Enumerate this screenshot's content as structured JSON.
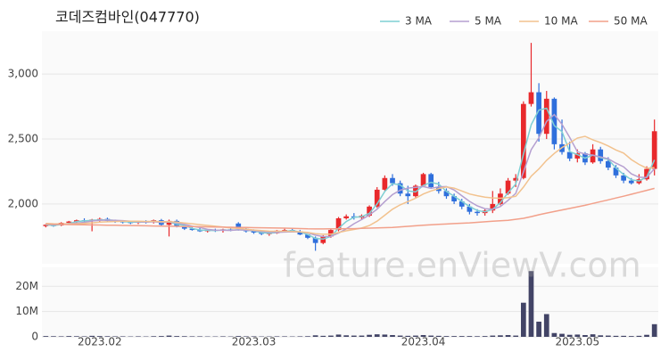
{
  "watermark": "feature.enViewV.com",
  "chart_data": [
    {
      "type": "candlestick",
      "title": "코데즈컴바인(047770)",
      "up_color": "#e8292c",
      "down_color": "#2f6fdc",
      "open": [
        1830,
        1840,
        1835,
        1855,
        1865,
        1875,
        1870,
        1880,
        1885,
        1870,
        1865,
        1860,
        1855,
        1865,
        1860,
        1875,
        1840,
        1870,
        1825,
        1810,
        1800,
        1790,
        1800,
        1795,
        1805,
        1850,
        1810,
        1790,
        1780,
        1770,
        1775,
        1795,
        1800,
        1790,
        1765,
        1740,
        1700,
        1750,
        1800,
        1890,
        1905,
        1895,
        1910,
        1980,
        2110,
        2200,
        2160,
        2080,
        2060,
        2140,
        2230,
        2130,
        2100,
        2060,
        2020,
        1980,
        1940,
        1930,
        1950,
        2000,
        2080,
        2180,
        2200,
        2770,
        2860,
        2540,
        2810,
        2460,
        2400,
        2350,
        2390,
        2320,
        2420,
        2330,
        2280,
        2220,
        2180,
        2160,
        2190,
        2270
      ],
      "high": [
        1845,
        1850,
        1860,
        1870,
        1880,
        1890,
        1885,
        1895,
        1895,
        1880,
        1875,
        1870,
        1870,
        1875,
        1880,
        1885,
        1880,
        1880,
        1835,
        1820,
        1815,
        1805,
        1810,
        1810,
        1815,
        1860,
        1820,
        1805,
        1790,
        1785,
        1800,
        1810,
        1810,
        1800,
        1770,
        1750,
        1760,
        1810,
        1900,
        1920,
        1930,
        1920,
        1990,
        2130,
        2220,
        2230,
        2180,
        2140,
        2150,
        2240,
        2240,
        2170,
        2120,
        2080,
        2040,
        2000,
        1960,
        1960,
        2100,
        2120,
        2200,
        2230,
        2790,
        3240,
        2930,
        2870,
        2820,
        2650,
        2480,
        2420,
        2400,
        2460,
        2440,
        2360,
        2300,
        2240,
        2200,
        2230,
        2290,
        2650
      ],
      "low": [
        1820,
        1825,
        1830,
        1845,
        1855,
        1860,
        1790,
        1865,
        1860,
        1855,
        1850,
        1845,
        1845,
        1850,
        1850,
        1830,
        1750,
        1820,
        1800,
        1795,
        1785,
        1780,
        1785,
        1780,
        1790,
        1795,
        1780,
        1770,
        1760,
        1755,
        1770,
        1785,
        1780,
        1760,
        1730,
        1640,
        1690,
        1740,
        1790,
        1880,
        1880,
        1880,
        1900,
        1970,
        2100,
        2140,
        2060,
        2000,
        2050,
        2130,
        2120,
        2080,
        2040,
        2000,
        1960,
        1920,
        1910,
        1910,
        1930,
        1990,
        2070,
        2130,
        2190,
        2750,
        2480,
        2500,
        2420,
        2380,
        2330,
        2320,
        2300,
        2310,
        2310,
        2260,
        2200,
        2160,
        2150,
        2150,
        2180,
        2220
      ],
      "close": [
        1840,
        1830,
        1855,
        1865,
        1875,
        1870,
        1880,
        1885,
        1870,
        1865,
        1860,
        1855,
        1865,
        1860,
        1875,
        1840,
        1870,
        1825,
        1810,
        1800,
        1790,
        1800,
        1795,
        1805,
        1795,
        1810,
        1790,
        1780,
        1770,
        1775,
        1795,
        1800,
        1790,
        1765,
        1740,
        1700,
        1750,
        1800,
        1890,
        1905,
        1895,
        1910,
        1980,
        2110,
        2200,
        2160,
        2080,
        2060,
        2140,
        2230,
        2130,
        2100,
        2060,
        2020,
        1980,
        1940,
        1930,
        1950,
        2000,
        2080,
        2180,
        2200,
        2770,
        2860,
        2540,
        2810,
        2460,
        2400,
        2350,
        2390,
        2320,
        2420,
        2330,
        2280,
        2220,
        2180,
        2160,
        2190,
        2270,
        2560
      ],
      "series": [
        {
          "name": "3 MA",
          "color": "#7ecfd4",
          "values": [
            1840,
            1835,
            1842,
            1850,
            1865,
            1870,
            1875,
            1878,
            1878,
            1873,
            1865,
            1860,
            1860,
            1860,
            1867,
            1858,
            1862,
            1845,
            1835,
            1812,
            1800,
            1797,
            1795,
            1800,
            1798,
            1803,
            1798,
            1793,
            1780,
            1775,
            1780,
            1790,
            1795,
            1785,
            1765,
            1735,
            1730,
            1750,
            1813,
            1865,
            1897,
            1903,
            1928,
            2000,
            2097,
            2157,
            2147,
            2100,
            2093,
            2143,
            2167,
            2153,
            2097,
            2060,
            2020,
            1980,
            1950,
            1940,
            1960,
            2010,
            2087,
            2153,
            2383,
            2610,
            2723,
            2737,
            2603,
            2557,
            2403,
            2380,
            2353,
            2377,
            2357,
            2343,
            2277,
            2227,
            2187,
            2177,
            2207,
            2340
          ]
        },
        {
          "name": "5 MA",
          "color": "#b59fd0",
          "values": [
            1845,
            1842,
            1843,
            1848,
            1853,
            1859,
            1869,
            1875,
            1876,
            1874,
            1872,
            1867,
            1863,
            1861,
            1863,
            1859,
            1862,
            1855,
            1844,
            1829,
            1819,
            1805,
            1799,
            1798,
            1797,
            1801,
            1799,
            1796,
            1789,
            1784,
            1782,
            1784,
            1786,
            1785,
            1778,
            1760,
            1749,
            1751,
            1776,
            1809,
            1848,
            1880,
            1916,
            1960,
            2019,
            2072,
            2106,
            2122,
            2128,
            2134,
            2120,
            2132,
            2134,
            2108,
            2064,
            2020,
            1986,
            1964,
            1960,
            1980,
            2028,
            2082,
            2246,
            2418,
            2510,
            2636,
            2688,
            2614,
            2512,
            2402,
            2384,
            2376,
            2362,
            2348,
            2314,
            2286,
            2232,
            2206,
            2204,
            2272
          ]
        },
        {
          "name": "10 MA",
          "color": "#f2c28e",
          "values": [
            1850,
            1848,
            1847,
            1847,
            1848,
            1850,
            1855,
            1860,
            1863,
            1865,
            1867,
            1868,
            1868,
            1866,
            1866,
            1864,
            1864,
            1860,
            1854,
            1848,
            1841,
            1835,
            1829,
            1823,
            1815,
            1812,
            1807,
            1800,
            1796,
            1791,
            1790,
            1790,
            1789,
            1786,
            1781,
            1772,
            1767,
            1768,
            1780,
            1794,
            1804,
            1815,
            1834,
            1868,
            1914,
            1960,
            1993,
            2019,
            2044,
            2077,
            2100,
            2119,
            2131,
            2122,
            2100,
            2077,
            2064,
            2053,
            2047,
            2044,
            2049,
            2059,
            2130,
            2214,
            2270,
            2336,
            2389,
            2434,
            2469,
            2508,
            2521,
            2494,
            2473,
            2447,
            2416,
            2392,
            2342,
            2305,
            2276,
            2280
          ]
        },
        {
          "name": "50 MA",
          "color": "#f2a08a",
          "values": [
            1845,
            1844,
            1843,
            1842,
            1841,
            1840,
            1839,
            1838,
            1837,
            1836,
            1835,
            1834,
            1833,
            1832,
            1831,
            1830,
            1829,
            1828,
            1827,
            1826,
            1825,
            1824,
            1823,
            1822,
            1821,
            1820,
            1819,
            1818,
            1817,
            1816,
            1815,
            1814,
            1812,
            1811,
            1809,
            1808,
            1808,
            1809,
            1809,
            1810,
            1810,
            1812,
            1814,
            1816,
            1818,
            1820,
            1824,
            1828,
            1832,
            1836,
            1840,
            1843,
            1846,
            1849,
            1852,
            1855,
            1859,
            1863,
            1867,
            1871,
            1875,
            1882,
            1890,
            1903,
            1917,
            1930,
            1942,
            1954,
            1966,
            1978,
            1990,
            2004,
            2018,
            2032,
            2046,
            2060,
            2075,
            2090,
            2105,
            2120
          ]
        }
      ],
      "ylim": [
        1540,
        3330
      ],
      "yticks": [
        {
          "value": 2000,
          "label": "2,000"
        },
        {
          "value": 2500,
          "label": "2,500"
        },
        {
          "value": 3000,
          "label": "3,000"
        }
      ],
      "grid": true,
      "legend": "top-right"
    },
    {
      "type": "bar",
      "color": "#424466",
      "categories": [
        null,
        null,
        null,
        null,
        null,
        null,
        null,
        "2023.02",
        null,
        null,
        null,
        null,
        null,
        null,
        null,
        null,
        null,
        null,
        null,
        null,
        null,
        null,
        null,
        null,
        null,
        null,
        null,
        "2023.03",
        null,
        null,
        null,
        null,
        null,
        null,
        null,
        null,
        null,
        null,
        null,
        null,
        null,
        null,
        null,
        null,
        null,
        null,
        null,
        null,
        null,
        "2023.04",
        null,
        null,
        null,
        null,
        null,
        null,
        null,
        null,
        null,
        null,
        null,
        null,
        null,
        null,
        null,
        null,
        null,
        null,
        null,
        "2023.05",
        null,
        null,
        null,
        null,
        null,
        null,
        null,
        null,
        null,
        null
      ],
      "values": [
        300000,
        250000,
        200000,
        300000,
        250000,
        200000,
        400000,
        300000,
        250000,
        200000,
        200000,
        150000,
        200000,
        150000,
        250000,
        300000,
        500000,
        300000,
        250000,
        200000,
        200000,
        150000,
        150000,
        200000,
        150000,
        300000,
        200000,
        200000,
        150000,
        150000,
        200000,
        200000,
        150000,
        200000,
        250000,
        600000,
        400000,
        500000,
        900000,
        600000,
        500000,
        500000,
        800000,
        1000000,
        900000,
        700000,
        500000,
        400000,
        500000,
        700000,
        500000,
        400000,
        300000,
        300000,
        300000,
        300000,
        250000,
        300000,
        500000,
        600000,
        700000,
        500000,
        13500000,
        26000000,
        6000000,
        9000000,
        1500000,
        1200000,
        800000,
        900000,
        700000,
        1000000,
        600000,
        500000,
        400000,
        400000,
        300000,
        400000,
        800000,
        5000000
      ],
      "ylim": [
        0,
        27500000
      ],
      "yticks": [
        0,
        {
          "value": 10000000,
          "label": "10M"
        },
        {
          "value": 20000000,
          "label": "20M"
        }
      ],
      "grid": true
    }
  ]
}
